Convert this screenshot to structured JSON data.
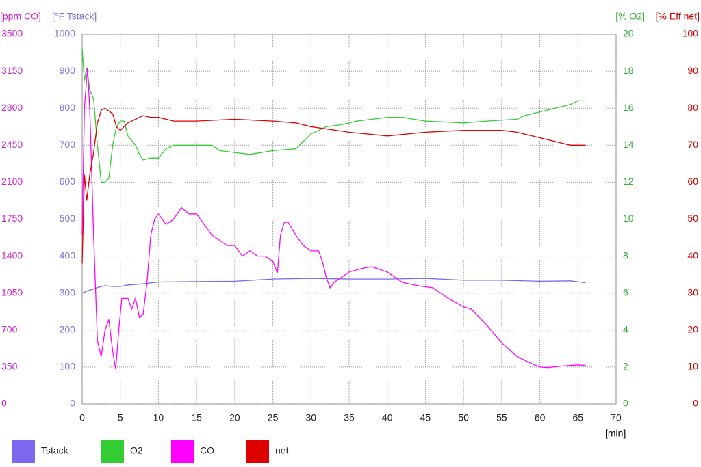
{
  "chart_data": {
    "type": "line",
    "x_label": "[min]",
    "xlim": [
      0,
      70
    ],
    "xticks": [
      0,
      5,
      10,
      15,
      20,
      25,
      30,
      35,
      40,
      45,
      50,
      55,
      60,
      65,
      70
    ],
    "grid": true,
    "legend": "bottom",
    "axes": [
      {
        "id": "co",
        "label": "[ppm CO]",
        "color": "#cc22cc",
        "lim": [
          0,
          3500
        ],
        "ticks": [
          0,
          350,
          700,
          1050,
          1400,
          1750,
          2100,
          2450,
          2800,
          3150,
          3500
        ]
      },
      {
        "id": "tstack",
        "label": "[°F Tstack]",
        "color": "#7b74d9",
        "lim": [
          0,
          1000
        ],
        "ticks": [
          0,
          100,
          200,
          300,
          400,
          500,
          600,
          700,
          800,
          900,
          1000
        ]
      },
      {
        "id": "o2",
        "label": "[% O2]",
        "color": "#33aa33",
        "lim": [
          0,
          20
        ],
        "ticks": [
          0,
          2,
          4,
          6,
          8,
          10,
          12,
          14,
          16,
          18,
          20
        ]
      },
      {
        "id": "eff",
        "label": "[% Eff net]",
        "color": "#cc0000",
        "lim": [
          0,
          100
        ],
        "ticks": [
          0,
          10,
          20,
          30,
          40,
          50,
          60,
          70,
          80,
          90,
          100
        ]
      }
    ],
    "series": [
      {
        "name": "Tstack",
        "color": "#7b68ee",
        "axis": "tstack",
        "x": [
          0,
          1,
          2,
          3,
          4,
          5,
          6,
          8,
          10,
          15,
          20,
          25,
          30,
          35,
          40,
          45,
          50,
          55,
          60,
          64,
          66
        ],
        "values": [
          300,
          308,
          315,
          320,
          318,
          318,
          322,
          325,
          330,
          331,
          332,
          338,
          340,
          338,
          338,
          340,
          335,
          335,
          332,
          333,
          328
        ]
      },
      {
        "name": "O2",
        "color": "#33cc33",
        "axis": "o2",
        "x": [
          0,
          0.3,
          0.6,
          1,
          1.5,
          2,
          2.5,
          3,
          3.5,
          4,
          4.5,
          5,
          5.5,
          6,
          7,
          7.5,
          8,
          9,
          10,
          11,
          12,
          17,
          18,
          20,
          22,
          25,
          28,
          29,
          30,
          31,
          32,
          34,
          36,
          38,
          40,
          42,
          45,
          50,
          53,
          57,
          58,
          60,
          62,
          64,
          65,
          66
        ],
        "values": [
          19.2,
          17.5,
          18.2,
          17,
          16.5,
          14,
          12,
          12,
          12.2,
          14,
          15,
          15.3,
          15.3,
          14.5,
          14,
          13.5,
          13.2,
          13.3,
          13.3,
          13.8,
          14,
          14,
          13.7,
          13.6,
          13.5,
          13.7,
          13.8,
          14.2,
          14.6,
          14.8,
          15,
          15.1,
          15.3,
          15.4,
          15.5,
          15.5,
          15.3,
          15.2,
          15.3,
          15.4,
          15.6,
          15.8,
          16,
          16.2,
          16.4,
          16.4
        ]
      },
      {
        "name": "CO",
        "color": "#ff00ff",
        "axis": "co",
        "x": [
          0,
          0.3,
          0.7,
          1,
          1.5,
          2,
          2.5,
          3,
          3.5,
          4,
          4.4,
          4.8,
          5.2,
          6,
          6.5,
          7,
          7.5,
          8,
          8.5,
          9,
          9.5,
          10,
          11,
          12,
          13,
          14,
          15,
          16,
          17,
          18,
          19,
          20,
          21,
          22,
          23,
          24,
          25,
          25.6,
          26,
          26.5,
          27,
          28,
          29,
          30,
          31,
          31.5,
          32,
          32.5,
          33,
          35,
          37,
          38,
          40,
          42,
          44,
          46,
          48,
          50,
          51,
          53,
          55,
          57,
          59,
          60,
          61,
          63,
          65,
          66
        ],
        "values": [
          1600,
          2800,
          3180,
          2800,
          1600,
          600,
          450,
          700,
          800,
          500,
          330,
          700,
          1000,
          1000,
          900,
          1000,
          820,
          850,
          1150,
          1600,
          1750,
          1800,
          1700,
          1750,
          1860,
          1800,
          1800,
          1700,
          1600,
          1550,
          1500,
          1500,
          1400,
          1450,
          1400,
          1400,
          1350,
          1240,
          1600,
          1720,
          1720,
          1600,
          1500,
          1450,
          1450,
          1350,
          1200,
          1100,
          1150,
          1250,
          1290,
          1300,
          1250,
          1150,
          1120,
          1100,
          1000,
          920,
          900,
          750,
          580,
          450,
          380,
          350,
          345,
          360,
          370,
          365
        ]
      },
      {
        "name": "net",
        "color": "#dd0000",
        "axis": "eff",
        "x": [
          0,
          0.3,
          0.6,
          1,
          1.5,
          2,
          2.5,
          3,
          4,
          4.5,
          5,
          6,
          7,
          8,
          9,
          10,
          12,
          15,
          20,
          25,
          28,
          30,
          35,
          40,
          45,
          50,
          55,
          57,
          60,
          63,
          64,
          66
        ],
        "values": [
          38,
          62,
          55,
          62,
          68,
          76,
          79.5,
          80,
          78.5,
          75,
          74,
          76,
          77,
          78,
          77.5,
          77.5,
          76.5,
          76.5,
          77,
          76.5,
          76,
          75,
          73.5,
          72.5,
          73.5,
          74,
          74,
          73.5,
          72,
          70.5,
          70,
          70
        ]
      }
    ]
  }
}
